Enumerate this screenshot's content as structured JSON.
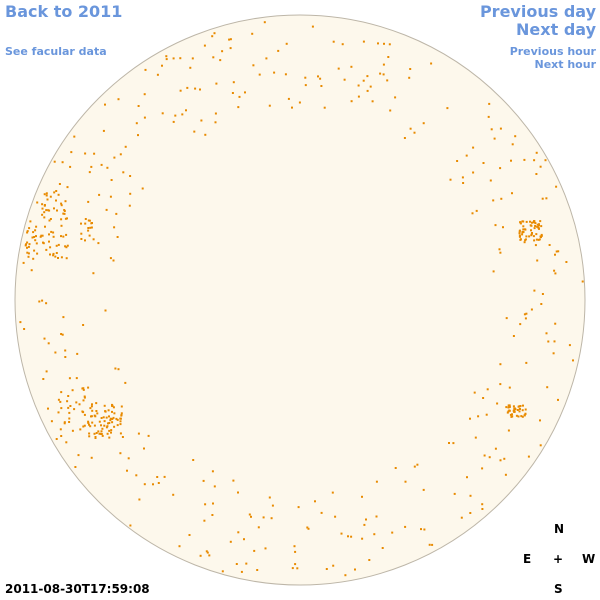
{
  "nav": {
    "back": "Back to 2011",
    "facular_data": "See facular data",
    "previous_day": "Previous day",
    "next_day": "Next day",
    "previous_hour": "Previous hour",
    "next_hour": "Next hour"
  },
  "timestamp": "2011-08-30T17:59:08",
  "compass": {
    "north": "N",
    "east": "E",
    "center": "+",
    "west": "W",
    "south": "S"
  }
}
